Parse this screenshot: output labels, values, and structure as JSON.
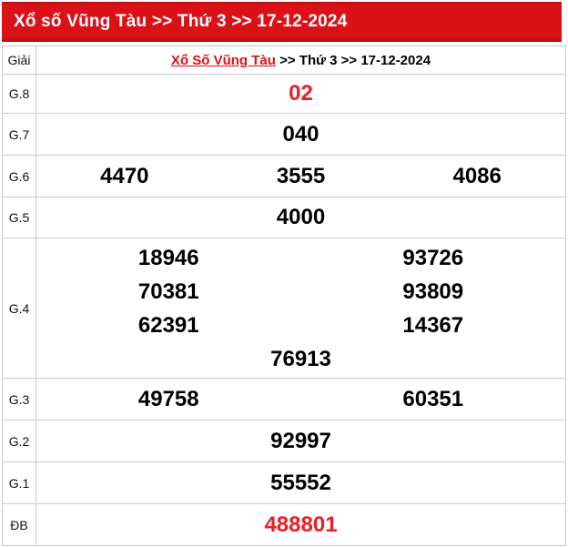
{
  "banner": {
    "title": "Xổ số Vũng Tàu >> Thứ 3 >> 17-12-2024"
  },
  "header": {
    "label": "Giải",
    "link_text": "Xổ Số Vũng Tàu",
    "rest_text": " >> Thứ 3 >> 17-12-2024"
  },
  "colors": {
    "banner_bg": "#db1118",
    "red_number": "#ee1c25",
    "link_red": "#e00d14",
    "border": "#c9c9c9"
  },
  "rows": [
    {
      "label": "G.8",
      "numbers": [
        "02"
      ],
      "highlight": true
    },
    {
      "label": "G.7",
      "numbers": [
        "040"
      ]
    },
    {
      "label": "G.6",
      "numbers": [
        "4470",
        "3555",
        "4086"
      ]
    },
    {
      "label": "G.5",
      "numbers": [
        "4000"
      ]
    },
    {
      "label": "G.4",
      "numbers": [
        "18946",
        "93726",
        "70381",
        "93809",
        "62391",
        "14367",
        "76913"
      ]
    },
    {
      "label": "G.3",
      "numbers": [
        "49758",
        "60351"
      ]
    },
    {
      "label": "G.2",
      "numbers": [
        "92997"
      ]
    },
    {
      "label": "G.1",
      "numbers": [
        "55552"
      ]
    },
    {
      "label": "ĐB",
      "numbers": [
        "488801"
      ],
      "highlight": true
    }
  ]
}
